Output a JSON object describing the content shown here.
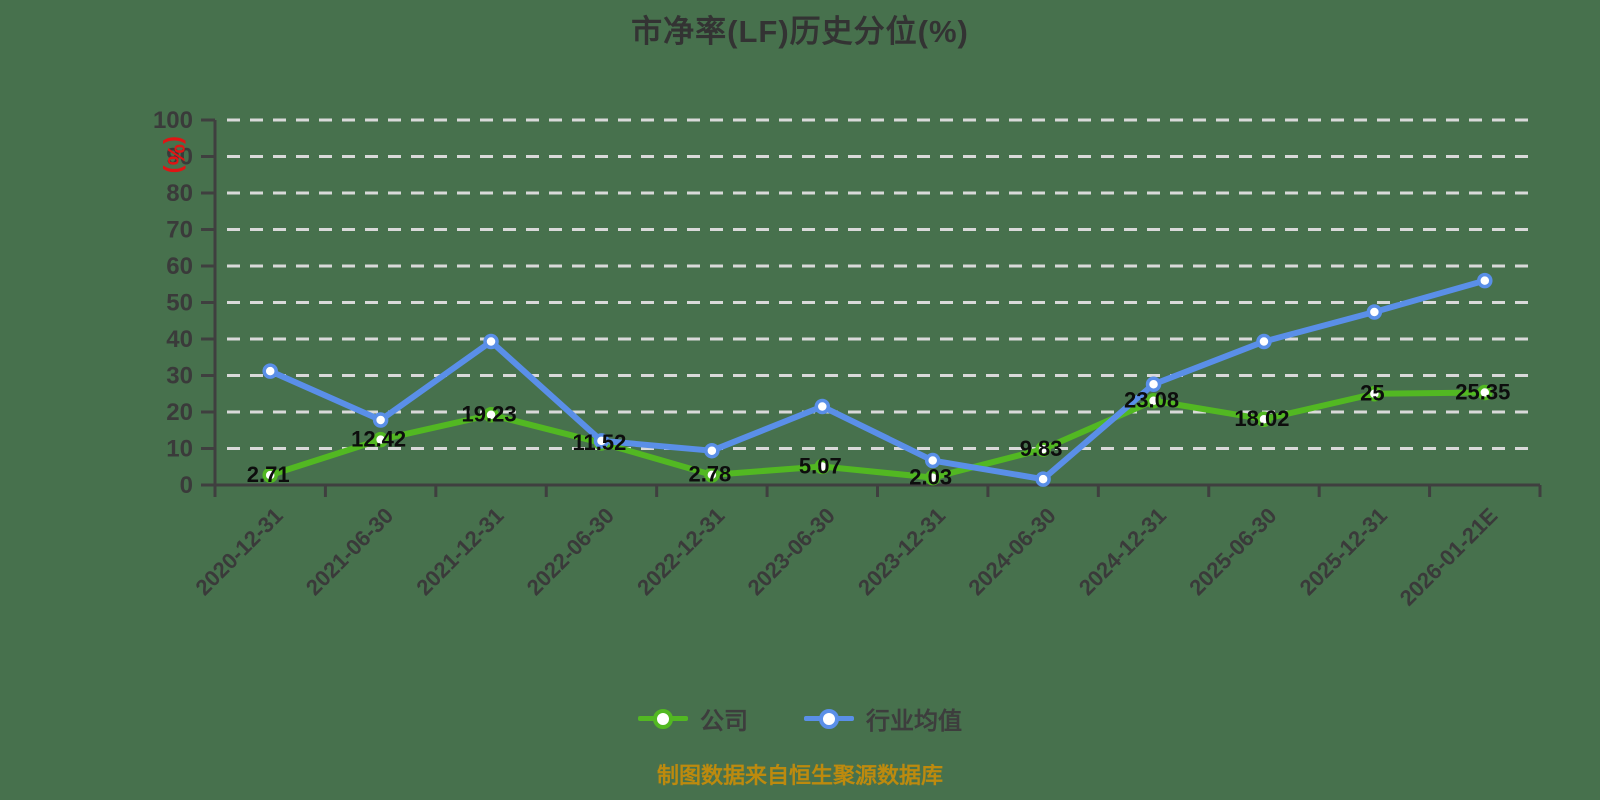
{
  "title": "市净率(LF)历史分位(%)",
  "footer_note": "制图数据来自恒生聚源数据库",
  "colors": {
    "background": "#47714d",
    "grid": "#d9d9d9",
    "axis": "#3f3f3f",
    "tick_label": "#3a3a3a",
    "data_label": "#0d0d0d",
    "title": "#333333",
    "footer": "#bd8a0e",
    "y_unit_label": "#e01414",
    "legend_text": "#3d3d3d",
    "series_company": "#52b822",
    "series_industry": "#5a8fe8"
  },
  "chart_data": {
    "type": "line",
    "title": "市净率(LF)历史分位(%)",
    "ylabel": "(%)",
    "xlabel": "",
    "ylim": [
      0,
      100
    ],
    "y_ticks": [
      0,
      10,
      20,
      30,
      40,
      50,
      60,
      70,
      80,
      90,
      100
    ],
    "grid": "horizontal dashed, no vertical gridlines",
    "legend_position": "bottom",
    "x_label_rotation": 45,
    "categories": [
      "2020-12-31",
      "2021-06-30",
      "2021-12-31",
      "2022-06-30",
      "2022-12-31",
      "2023-06-30",
      "2023-12-31",
      "2024-06-30",
      "2024-12-31",
      "2025-06-30",
      "2025-12-31",
      "2026-01-21E"
    ],
    "series": [
      {
        "name": "公司",
        "color": "#52b822",
        "values": [
          2.71,
          12.42,
          19.23,
          11.52,
          2.78,
          5.07,
          2.03,
          9.83,
          23.08,
          18.02,
          25,
          25.35
        ],
        "labels": [
          "2.71",
          "12.42",
          "19.23",
          "11.52",
          "2.78",
          "5.07",
          "2.03",
          "9.83",
          "23.08",
          "18.02",
          "25",
          "25.35"
        ],
        "labels_shown": true
      },
      {
        "name": "行业均值",
        "color": "#5a8fe8",
        "values": [
          31.2,
          17.8,
          39.3,
          12.1,
          9.4,
          21.5,
          6.7,
          1.6,
          27.6,
          39.3,
          47.4,
          56
        ],
        "labels_shown": false,
        "values_estimated_from_pixels": true
      }
    ]
  }
}
